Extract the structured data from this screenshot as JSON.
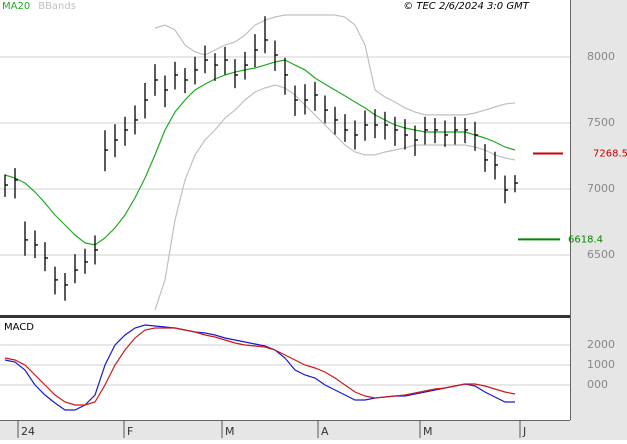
{
  "chart_data": [
    {
      "type": "ohlc",
      "x": [
        0,
        1,
        2,
        3,
        4,
        5,
        6,
        7,
        8,
        9,
        10,
        11,
        12,
        13,
        14,
        15,
        16,
        17,
        18,
        19,
        20,
        21,
        22,
        23,
        24,
        25,
        26,
        27,
        28,
        29,
        30,
        31,
        32,
        33,
        34,
        35,
        36,
        37,
        38,
        39,
        40,
        41,
        42,
        43,
        44,
        45,
        46,
        47,
        48,
        49,
        50,
        51
      ],
      "xlim": [
        -0.5,
        56.5
      ],
      "high": [
        7110,
        7158,
        6754,
        6686,
        6597,
        6411,
        6363,
        6506,
        6547,
        6648,
        7445,
        7491,
        7547,
        7633,
        7804,
        7946,
        7860,
        7964,
        7916,
        8002,
        8087,
        8029,
        8077,
        7984,
        8039,
        8173,
        8309,
        8125,
        7994,
        7784,
        7794,
        7812,
        7708,
        7623,
        7567,
        7519,
        7595,
        7605,
        7585,
        7547,
        7529,
        7481,
        7547,
        7537,
        7519,
        7547,
        7537,
        7509,
        7340,
        7282,
        7102,
        7105
      ],
      "low": [
        6940,
        6928,
        6494,
        6476,
        6377,
        6201,
        6153,
        6286,
        6357,
        6428,
        7135,
        7241,
        7327,
        7413,
        7534,
        7706,
        7620,
        7754,
        7726,
        7792,
        7877,
        7819,
        7867,
        7764,
        7829,
        7923,
        8029,
        7895,
        7714,
        7554,
        7564,
        7592,
        7498,
        7413,
        7357,
        7299,
        7365,
        7385,
        7375,
        7327,
        7299,
        7251,
        7337,
        7347,
        7319,
        7337,
        7347,
        7289,
        7130,
        7072,
        6892,
        6975
      ],
      "close": [
        7030,
        7068,
        6614,
        6576,
        6477,
        6311,
        6273,
        6386,
        6447,
        6538,
        7295,
        7371,
        7447,
        7523,
        7674,
        7826,
        7750,
        7864,
        7826,
        7902,
        7977,
        7939,
        7977,
        7864,
        7939,
        8053,
        8129,
        8015,
        7864,
        7674,
        7674,
        7712,
        7598,
        7523,
        7447,
        7409,
        7485,
        7485,
        7485,
        7447,
        7409,
        7371,
        7447,
        7447,
        7409,
        7447,
        7447,
        7409,
        7220,
        7182,
        6992,
        7045
      ],
      "color": "#000000",
      "series": [
        {
          "name": "MA20",
          "color": "#22aa22",
          "values": [
            7106,
            7083,
            7045,
            6977,
            6894,
            6803,
            6727,
            6651,
            6591,
            6576,
            6629,
            6705,
            6803,
            6932,
            7083,
            7258,
            7447,
            7583,
            7674,
            7750,
            7795,
            7833,
            7864,
            7886,
            7902,
            7917,
            7939,
            7962,
            7977,
            7939,
            7902,
            7841,
            7795,
            7750,
            7705,
            7659,
            7614,
            7561,
            7523,
            7485,
            7462,
            7447,
            7432,
            7432,
            7432,
            7432,
            7432,
            7409,
            7386,
            7356,
            7318,
            7295
          ]
        },
        {
          "name": "BBands",
          "color": "#c0c0c0",
          "upper": [
            null,
            null,
            null,
            null,
            null,
            null,
            null,
            null,
            null,
            null,
            null,
            null,
            null,
            null,
            null,
            8220,
            8242,
            8205,
            8091,
            8038,
            8015,
            8053,
            8091,
            8114,
            8167,
            8242,
            8280,
            8303,
            8318,
            8318,
            8318,
            8318,
            8318,
            8318,
            8303,
            8242,
            8091,
            7750,
            7697,
            7659,
            7614,
            7583,
            7561,
            7561,
            7561,
            7561,
            7561,
            7576,
            7598,
            7621,
            7644,
            7652
          ],
          "lower": [
            null,
            null,
            null,
            null,
            null,
            null,
            null,
            null,
            null,
            null,
            null,
            null,
            null,
            null,
            null,
            6083,
            6311,
            6765,
            7068,
            7258,
            7371,
            7447,
            7538,
            7598,
            7674,
            7735,
            7765,
            7788,
            7765,
            7712,
            7636,
            7561,
            7485,
            7409,
            7333,
            7280,
            7258,
            7258,
            7280,
            7295,
            7311,
            7333,
            7333,
            7333,
            7333,
            7333,
            7333,
            7318,
            7295,
            7258,
            7235,
            7220
          ]
        }
      ],
      "ylim": [
        6045,
        8432
      ],
      "yticks": [
        6500,
        7000,
        7500,
        8000
      ],
      "grid": true,
      "levels": [
        {
          "value": 7268.5,
          "label": "7268.5",
          "color": "#cc0000"
        },
        {
          "value": 6618.4,
          "label": "6618.4",
          "color": "#008800"
        }
      ],
      "annotation": "© TEC 2/6/2024 3:0 GMT"
    },
    {
      "type": "line",
      "title": "MACD",
      "x": [
        0,
        1,
        2,
        3,
        4,
        5,
        6,
        7,
        8,
        9,
        10,
        11,
        12,
        13,
        14,
        15,
        16,
        17,
        18,
        19,
        20,
        21,
        22,
        23,
        24,
        25,
        26,
        27,
        28,
        29,
        30,
        31,
        32,
        33,
        34,
        35,
        36,
        37,
        38,
        39,
        40,
        41,
        42,
        43,
        44,
        45,
        46,
        47,
        48,
        49,
        50,
        51
      ],
      "xlim": [
        -0.5,
        56.5
      ],
      "series": [
        {
          "color": "#1a1acc",
          "values": [
            1250,
            1150,
            750,
            0,
            -500,
            -900,
            -1250,
            -1250,
            -1000,
            -500,
            1000,
            2000,
            2500,
            2850,
            3000,
            2950,
            2900,
            2850,
            2750,
            2650,
            2600,
            2500,
            2350,
            2250,
            2150,
            2050,
            1950,
            1750,
            1350,
            750,
            500,
            350,
            0,
            -250,
            -500,
            -750,
            -750,
            -650,
            -600,
            -550,
            -550,
            -450,
            -350,
            -250,
            -150,
            -50,
            50,
            -50,
            -350,
            -600,
            -850,
            -850
          ]
        },
        {
          "color": "#cc1a1a",
          "values": [
            1350,
            1250,
            1000,
            500,
            0,
            -500,
            -850,
            -1000,
            -1000,
            -850,
            0,
            1000,
            1750,
            2350,
            2750,
            2850,
            2850,
            2850,
            2750,
            2650,
            2500,
            2400,
            2250,
            2100,
            2000,
            1950,
            1900,
            1750,
            1500,
            1250,
            1000,
            850,
            650,
            350,
            0,
            -350,
            -550,
            -650,
            -600,
            -550,
            -500,
            -400,
            -300,
            -200,
            -150,
            -50,
            50,
            50,
            -50,
            -200,
            -350,
            -450
          ]
        }
      ],
      "ylim": [
        -1750,
        3350
      ],
      "yticks": [
        {
          "value": 0,
          "label": "000"
        },
        1000,
        2000
      ],
      "xticks": [
        {
          "value": 1.3,
          "label": "24"
        },
        {
          "value": 11.9,
          "label": "F"
        },
        {
          "value": 21.7,
          "label": "M"
        },
        {
          "value": 31.3,
          "label": "A"
        },
        {
          "value": 41.5,
          "label": "M"
        },
        {
          "value": 51.5,
          "label": "J"
        }
      ]
    }
  ]
}
